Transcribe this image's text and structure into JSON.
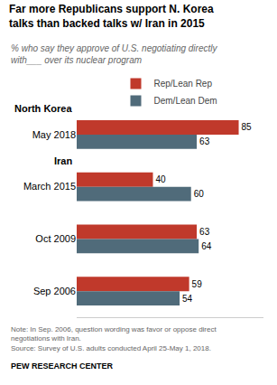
{
  "chart_data": {
    "type": "bar",
    "orientation": "horizontal",
    "title": "Far more Republicans support N. Korea\ntalks than backed talks w/ Iran in 2015",
    "subtitle": "% who say they approve of U.S. negotiating directly\nwith___ over its nuclear program",
    "categories": [
      "May 2018",
      "March 2015",
      "Oct 2009",
      "Sep 2006"
    ],
    "series": [
      {
        "name": "Rep/Lean Rep",
        "color": "#c0392b",
        "values": [
          85,
          40,
          63,
          59
        ]
      },
      {
        "name": "Dem/Lean Dem",
        "color": "#506b7a",
        "values": [
          63,
          60,
          64,
          54
        ]
      }
    ],
    "xlim": [
      0,
      98
    ],
    "xticks": [],
    "data_labels": true,
    "tick_labels": "y",
    "grid": false,
    "legend": "top",
    "annotations": [
      {
        "text": "North Korea",
        "category": "May 2018"
      },
      {
        "text": "Iran",
        "category": "March 2015"
      }
    ],
    "note": "Note: In Sep. 2006, question wording was favor or oppose direct\nnegotiations with Iran.\nSource: Survey of U.S. adults conducted April 25-May 1, 2018.",
    "source": "PEW RESEARCH CENTER"
  }
}
